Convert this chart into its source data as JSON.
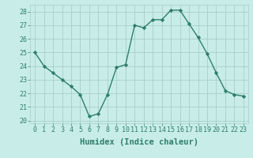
{
  "x": [
    0,
    1,
    2,
    3,
    4,
    5,
    6,
    7,
    8,
    9,
    10,
    11,
    12,
    13,
    14,
    15,
    16,
    17,
    18,
    19,
    20,
    21,
    22,
    23
  ],
  "y": [
    25,
    24,
    23.5,
    23,
    22.5,
    21.9,
    20.3,
    20.5,
    21.9,
    23.9,
    24.1,
    27.0,
    26.8,
    27.4,
    27.4,
    28.1,
    28.1,
    27.1,
    26.1,
    24.9,
    23.5,
    22.2,
    21.9,
    21.8
  ],
  "line_color": "#2e7d6e",
  "marker": "D",
  "marker_size": 2.2,
  "bg_color": "#c8ede8",
  "grid_color": "#a8cec8",
  "xlabel": "Humidex (Indice chaleur)",
  "xlabel_fontsize": 7.5,
  "ylim": [
    19.8,
    28.5
  ],
  "xlim": [
    -0.5,
    23.5
  ],
  "yticks": [
    20,
    21,
    22,
    23,
    24,
    25,
    26,
    27,
    28
  ],
  "xticks": [
    0,
    1,
    2,
    3,
    4,
    5,
    6,
    7,
    8,
    9,
    10,
    11,
    12,
    13,
    14,
    15,
    16,
    17,
    18,
    19,
    20,
    21,
    22,
    23
  ],
  "tick_fontsize": 6,
  "linewidth": 1.0
}
